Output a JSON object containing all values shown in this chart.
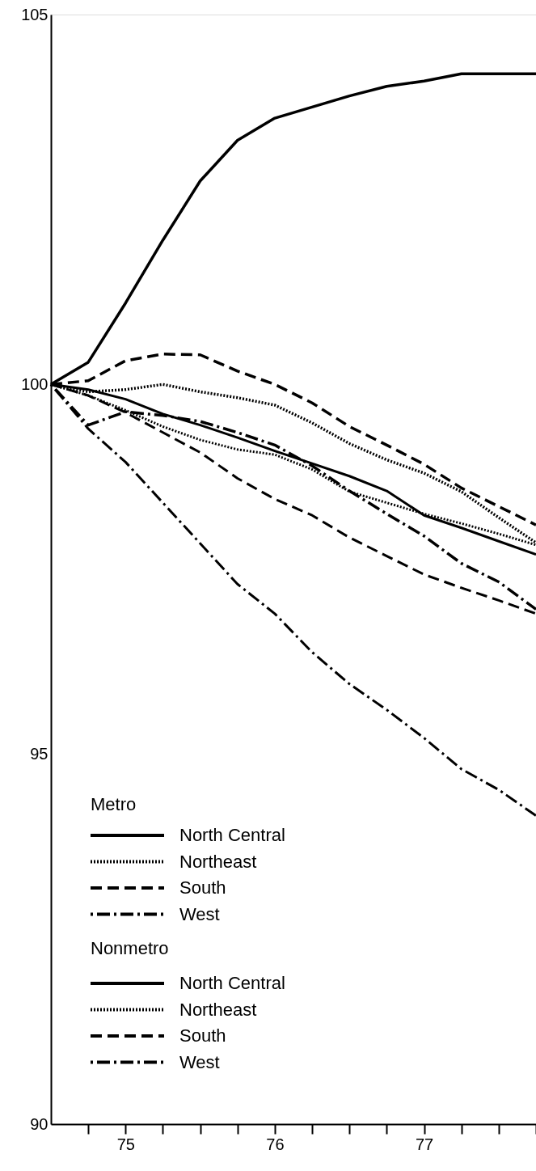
{
  "chart_data": {
    "type": "line",
    "x": [
      74.5,
      74.75,
      75,
      75.25,
      75.5,
      75.75,
      76,
      76.25,
      76.5,
      76.75,
      77,
      77.25,
      77.5,
      77.75
    ],
    "series": [
      {
        "name": "North Central",
        "color": "#000000",
        "line_style": "solid",
        "values": [
          100,
          100.3,
          101.1,
          101.95,
          102.75,
          103.3,
          103.6,
          103.75,
          103.9,
          104.03,
          104.1,
          104.2,
          104.2,
          104.2
        ]
      },
      {
        "name": "Northeast",
        "color": "#000000",
        "line_style": "dotted",
        "values": [
          100,
          99.9,
          99.93,
          100.0,
          99.9,
          99.82,
          99.72,
          99.48,
          99.2,
          98.98,
          98.8,
          98.55,
          98.2,
          97.86
        ]
      },
      {
        "name": "South",
        "color": "#000000",
        "line_style": "dashed",
        "values": [
          100,
          100.05,
          100.32,
          100.41,
          100.4,
          100.18,
          100.0,
          99.75,
          99.43,
          99.18,
          98.92,
          98.6,
          98.35,
          98.1
        ]
      },
      {
        "name": "West",
        "color": "#000000",
        "line_style": "dashdot",
        "values": [
          100,
          99.45,
          99.63,
          99.58,
          99.5,
          99.35,
          99.18,
          98.9,
          98.56,
          98.25,
          97.95,
          97.58,
          97.33,
          96.96
        ]
      },
      {
        "name": "North Central",
        "color": "#000000",
        "line_style": "solid",
        "values": [
          100,
          99.93,
          99.8,
          99.6,
          99.45,
          99.28,
          99.1,
          98.93,
          98.76,
          98.56,
          98.23,
          98.06,
          97.88,
          97.7
        ]
      },
      {
        "name": "Northeast",
        "color": "#000000",
        "line_style": "dotted",
        "values": [
          100,
          99.85,
          99.65,
          99.43,
          99.25,
          99.12,
          99.05,
          98.85,
          98.55,
          98.4,
          98.25,
          98.12,
          97.98,
          97.83
        ]
      },
      {
        "name": "South",
        "color": "#000000",
        "line_style": "dashed",
        "values": [
          100,
          99.85,
          99.62,
          99.35,
          99.08,
          98.73,
          98.45,
          98.23,
          97.93,
          97.68,
          97.43,
          97.25,
          97.08,
          96.9
        ]
      },
      {
        "name": "West",
        "color": "#000000",
        "line_style": "dashdot",
        "values": [
          100,
          99.4,
          98.95,
          98.4,
          97.85,
          97.3,
          96.9,
          96.38,
          95.95,
          95.6,
          95.22,
          94.8,
          94.52,
          94.17
        ]
      }
    ],
    "annotations": [
      "Metro",
      "Nonmetro"
    ],
    "xlim": [
      74.5,
      77.75
    ],
    "xticks": [
      {
        "value": 74.75,
        "label": null
      },
      75,
      {
        "value": 75.25,
        "label": null
      },
      {
        "value": 75.5,
        "label": null
      },
      {
        "value": 75.75,
        "label": null
      },
      76,
      {
        "value": 76.25,
        "label": null
      },
      {
        "value": 76.5,
        "label": null
      },
      {
        "value": 76.75,
        "label": null
      },
      77,
      {
        "value": 77.25,
        "label": null
      },
      {
        "value": 77.5,
        "label": null
      },
      {
        "value": 77.75,
        "label": null
      }
    ],
    "ylim": [
      90,
      105
    ],
    "yticks": [
      90,
      95,
      100,
      105
    ],
    "grid": false,
    "legend": "bottom left",
    "marker": "none"
  }
}
